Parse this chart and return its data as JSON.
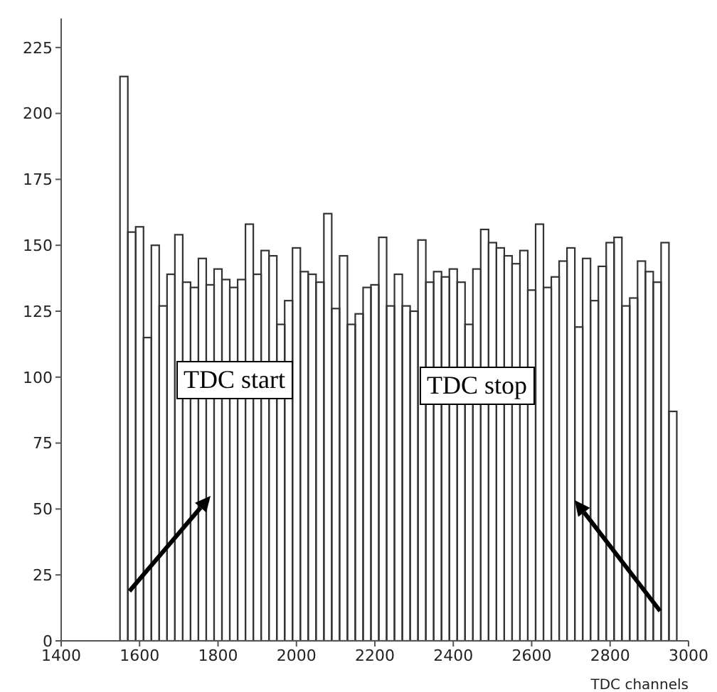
{
  "chart_data": {
    "type": "histogram",
    "xlabel": "TDC channels",
    "bins": [
      1550,
      1570,
      1590,
      1610,
      1630,
      1650,
      1670,
      1690,
      1710,
      1730,
      1750,
      1770,
      1790,
      1810,
      1830,
      1850,
      1870,
      1890,
      1910,
      1930,
      1950,
      1970,
      1990,
      2010,
      2030,
      2050,
      2070,
      2090,
      2110,
      2130,
      2150,
      2170,
      2190,
      2210,
      2230,
      2250,
      2270,
      2290,
      2310,
      2330,
      2350,
      2370,
      2390,
      2410,
      2430,
      2450,
      2470,
      2490,
      2510,
      2530,
      2550,
      2570,
      2590,
      2610,
      2630,
      2650,
      2670,
      2690,
      2710,
      2730,
      2750,
      2770,
      2790,
      2810,
      2830,
      2850,
      2870,
      2890,
      2910,
      2930,
      2950,
      2970
    ],
    "values": [
      214,
      155,
      157,
      115,
      150,
      127,
      139,
      154,
      136,
      134,
      145,
      135,
      141,
      137,
      134,
      137,
      158,
      139,
      148,
      146,
      120,
      129,
      149,
      140,
      139,
      136,
      162,
      126,
      146,
      120,
      124,
      134,
      135,
      153,
      127,
      139,
      127,
      125,
      152,
      136,
      140,
      138,
      141,
      136,
      120,
      141,
      156,
      151,
      149,
      146,
      143,
      148,
      133,
      158,
      134,
      138,
      144,
      149,
      119,
      145,
      129,
      142,
      151,
      153,
      127,
      130,
      144,
      140,
      136,
      151,
      87
    ],
    "color": "#333333",
    "xlim": [
      1400,
      3000
    ],
    "xticks": [
      1400,
      1600,
      1800,
      2000,
      2200,
      2400,
      2600,
      2800,
      3000
    ],
    "ylim": [
      0,
      236
    ],
    "yticks": [
      0,
      25,
      50,
      75,
      100,
      125,
      150,
      175,
      200,
      225
    ],
    "annotations": [
      "TDC start",
      "TDC stop"
    ]
  }
}
